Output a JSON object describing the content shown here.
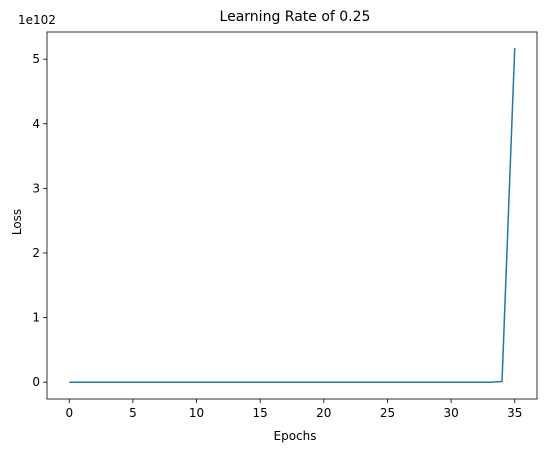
{
  "chart_data": {
    "type": "line",
    "title": "Learning Rate of 0.25",
    "xlabel": "Epochs",
    "ylabel": "Loss",
    "y_offset_text": "1e102",
    "xlim": [
      -1.75,
      36.75
    ],
    "ylim": [
      -0.26,
      5.42
    ],
    "x_ticks": [
      0,
      5,
      10,
      15,
      20,
      25,
      30,
      35
    ],
    "y_ticks": [
      0,
      1,
      2,
      3,
      4,
      5
    ],
    "grid": false,
    "line_color": "#1f77b4",
    "series": [
      {
        "x": [
          0,
          1,
          2,
          3,
          4,
          5,
          6,
          7,
          8,
          9,
          10,
          11,
          12,
          13,
          14,
          15,
          16,
          17,
          18,
          19,
          20,
          21,
          22,
          23,
          24,
          25,
          26,
          27,
          28,
          29,
          30,
          31,
          32,
          33,
          34,
          35
        ],
        "values": [
          0,
          0,
          0,
          0,
          0,
          0,
          0,
          0,
          0,
          0,
          0,
          0,
          0,
          0,
          0,
          0,
          0,
          0,
          0,
          0,
          0,
          0,
          0,
          0,
          0,
          0,
          0,
          0,
          0,
          0,
          0,
          0,
          0,
          0,
          0.01,
          5.17
        ]
      }
    ]
  }
}
